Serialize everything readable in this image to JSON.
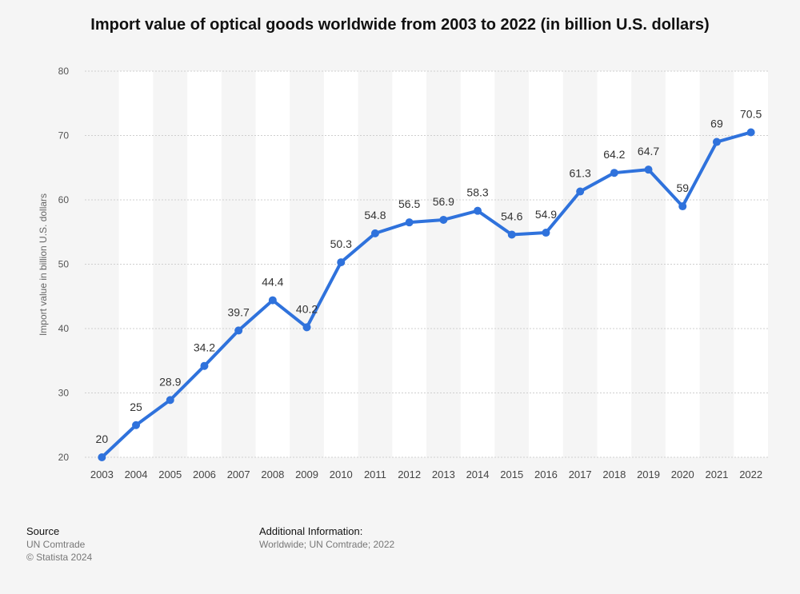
{
  "chart_data": {
    "type": "line",
    "title": "Import value of optical goods worldwide from 2003 to 2022 (in billion U.S. dollars)",
    "xlabel": "",
    "ylabel": "Import value in billion U.S. dollars",
    "categories": [
      "2003",
      "2004",
      "2005",
      "2006",
      "2007",
      "2008",
      "2009",
      "2010",
      "2011",
      "2012",
      "2013",
      "2014",
      "2015",
      "2016",
      "2017",
      "2018",
      "2019",
      "2020",
      "2021",
      "2022"
    ],
    "values": [
      20,
      25,
      28.9,
      34.2,
      39.7,
      44.4,
      40.2,
      50.3,
      54.8,
      56.5,
      56.9,
      58.3,
      54.6,
      54.9,
      61.3,
      64.2,
      64.7,
      59,
      69,
      70.5
    ],
    "data_labels": [
      "20",
      "25",
      "28.9",
      "34.2",
      "39.7",
      "44.4",
      "40.2",
      "50.3",
      "54.8",
      "56.5",
      "56.9",
      "58.3",
      "54.6",
      "54.9",
      "61.3",
      "64.2",
      "64.7",
      "59",
      "69",
      "70.5"
    ],
    "yticks": [
      "20",
      "30",
      "40",
      "50",
      "60",
      "70",
      "80"
    ],
    "ylim": [
      20,
      80
    ],
    "grid": true,
    "legend": "none",
    "line_color": "#2f72dc"
  },
  "footer": {
    "source_heading": "Source",
    "source_name": "UN Comtrade",
    "copyright": "© Statista 2024",
    "info_heading": "Additional Information:",
    "info_text": "Worldwide; UN Comtrade; 2022"
  }
}
